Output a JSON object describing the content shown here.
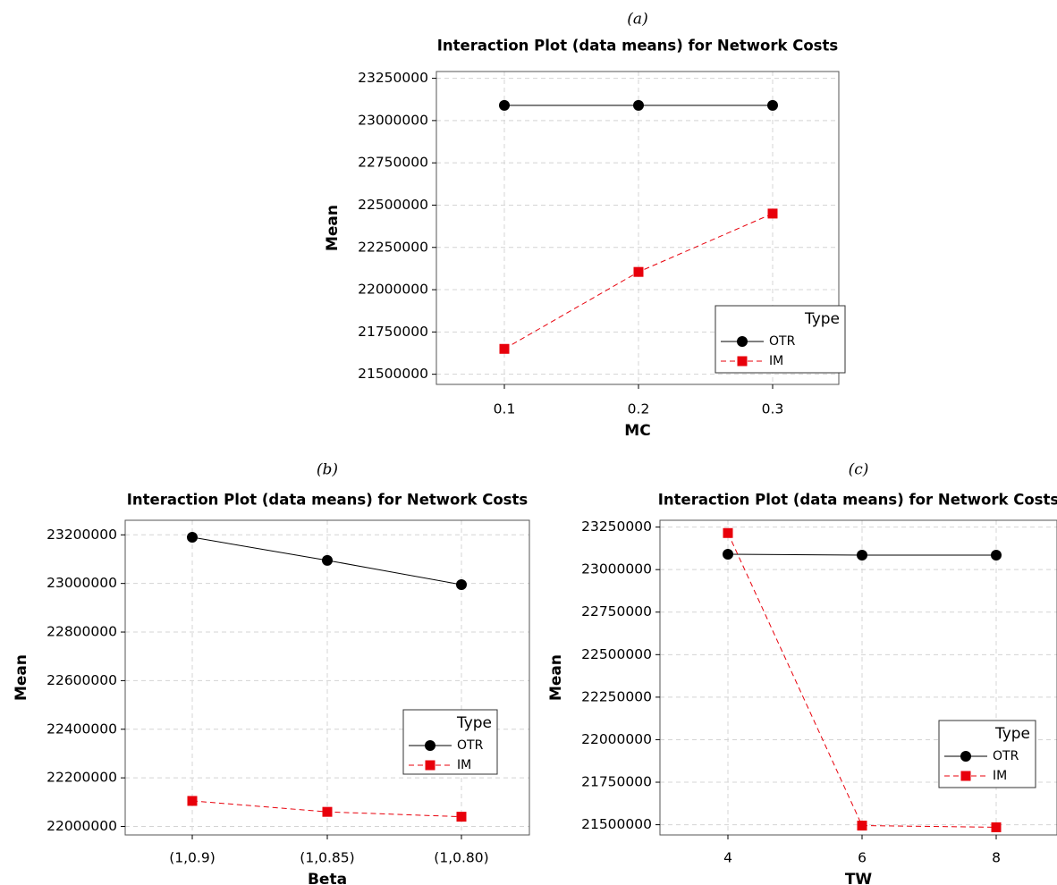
{
  "chart_data": [
    {
      "panel": "(a)",
      "type": "line",
      "title": "Interaction Plot (data means) for Network Costs",
      "xlabel": "MC",
      "ylabel": "Mean",
      "categories": [
        "0.1",
        "0.2",
        "0.3"
      ],
      "yticks": [
        21500000,
        21750000,
        22000000,
        22250000,
        22500000,
        22750000,
        23000000,
        23250000
      ],
      "ylim": [
        21440000,
        23290000
      ],
      "grid": true,
      "legend": {
        "title": "Type",
        "placement": "bottom-right"
      },
      "series": [
        {
          "name": "OTR",
          "color": "#000000",
          "marker": "circle",
          "dash": false,
          "values": [
            23090000,
            23090000,
            23090000
          ]
        },
        {
          "name": "IM",
          "color": "#e8000b",
          "marker": "square",
          "dash": true,
          "values": [
            21650000,
            22105000,
            22450000
          ]
        }
      ]
    },
    {
      "panel": "(b)",
      "type": "line",
      "title": "Interaction Plot (data means) for Network Costs",
      "xlabel": "Beta",
      "ylabel": "Mean",
      "categories": [
        "(1,0.9)",
        "(1,0.85)",
        "(1,0.80)"
      ],
      "yticks": [
        22000000,
        22200000,
        22400000,
        22600000,
        22800000,
        23000000,
        23200000
      ],
      "ylim": [
        21965000,
        23260000
      ],
      "grid": true,
      "legend": {
        "title": "Type",
        "placement": "bottom-right"
      },
      "series": [
        {
          "name": "OTR",
          "color": "#000000",
          "marker": "circle",
          "dash": false,
          "values": [
            23190000,
            23095000,
            22995000
          ]
        },
        {
          "name": "IM",
          "color": "#e8000b",
          "marker": "square",
          "dash": true,
          "values": [
            22105000,
            22060000,
            22040000
          ]
        }
      ]
    },
    {
      "panel": "(c)",
      "type": "line",
      "title": "Interaction Plot (data means) for Network Costs",
      "xlabel": "TW",
      "ylabel": "Mean",
      "categories": [
        "4",
        "6",
        "8"
      ],
      "yticks": [
        21500000,
        21750000,
        22000000,
        22250000,
        22500000,
        22750000,
        23000000,
        23250000
      ],
      "ylim": [
        21440000,
        23290000
      ],
      "grid": true,
      "legend": {
        "title": "Type",
        "placement": "bottom-right"
      },
      "series": [
        {
          "name": "OTR",
          "color": "#000000",
          "marker": "circle",
          "dash": false,
          "values": [
            23090000,
            23085000,
            23085000
          ]
        },
        {
          "name": "IM",
          "color": "#e8000b",
          "marker": "square",
          "dash": true,
          "values": [
            23215000,
            21495000,
            21485000
          ]
        }
      ]
    }
  ]
}
